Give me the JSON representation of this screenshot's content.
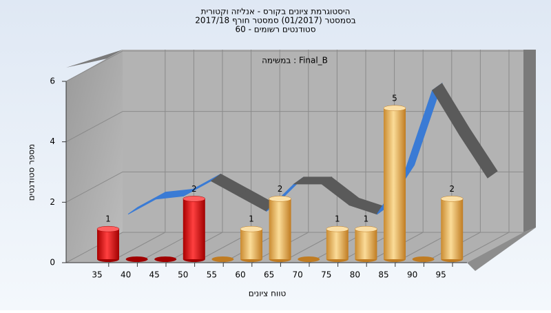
{
  "chart_data": {
    "type": "bar3d",
    "title": [
      "היסטוגרמת ציונים בקורס - אנליזה וקטורית",
      "בסמסטר (01/2017) סמסטר חורף 2017/18",
      "סטודנטים רשומים - 60"
    ],
    "annotation": "במשימה : Final_B",
    "x_label": "טווח ציונים",
    "y_label": "מספר סטודנטים",
    "categories": [
      35,
      40,
      45,
      50,
      55,
      60,
      65,
      70,
      75,
      80,
      85,
      90,
      95
    ],
    "values": [
      1,
      0,
      0,
      2,
      0,
      1,
      2,
      0,
      1,
      1,
      5,
      0,
      2
    ],
    "colors": [
      "red",
      "red",
      "red",
      "red",
      "orange",
      "orange",
      "orange",
      "orange",
      "orange",
      "orange",
      "orange",
      "orange",
      "orange"
    ],
    "trend": [
      0.6,
      1.1,
      1.2,
      1.7,
      1.2,
      0.7,
      1.6,
      1.6,
      0.9,
      0.6,
      2.0,
      4.7,
      3.2,
      1.8
    ],
    "trend_rising_color": "#3a7bd5",
    "trend_falling_color": "#5a5a5a",
    "ylim": [
      0,
      6
    ],
    "yticks": [
      0,
      2,
      4,
      6
    ],
    "grid": true
  }
}
